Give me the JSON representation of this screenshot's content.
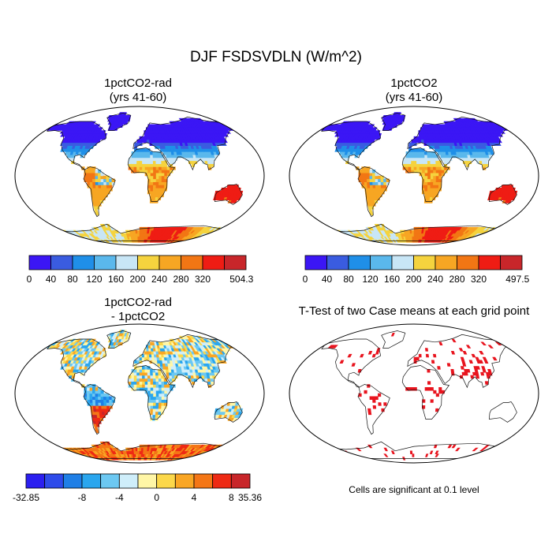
{
  "page": {
    "title": "DJF FSDSVDLN (W/m^2)"
  },
  "panels": [
    {
      "id": "p1",
      "title_line1": "1pctCO2-rad",
      "title_line2": "(yrs 41-60)"
    },
    {
      "id": "p2",
      "title_line1": "1pctCO2",
      "title_line2": "(yrs 41-60)"
    },
    {
      "id": "p3",
      "title_line1": "1pctCO2-rad",
      "title_line2": "- 1pctCO2"
    },
    {
      "id": "p4",
      "title_line1": "T-Test of two Case means at each grid point",
      "title_line2": ""
    }
  ],
  "colorbars": {
    "cb1": {
      "colors": [
        "#3b16f5",
        "#3a5ce0",
        "#1f8fe8",
        "#5ab8ec",
        "#c8e6f6",
        "#f5d33e",
        "#f7a623",
        "#f27614",
        "#ef1c14",
        "#c8262a"
      ],
      "labels": [
        "0",
        "40",
        "80",
        "120",
        "160",
        "200",
        "240",
        "280",
        "320",
        "504.3"
      ]
    },
    "cb2": {
      "colors": [
        "#3b16f5",
        "#3a5ce0",
        "#1f8fe8",
        "#5ab8ec",
        "#c8e6f6",
        "#f5d33e",
        "#f7a623",
        "#f27614",
        "#ef1c14",
        "#c8262a"
      ],
      "labels": [
        "0",
        "40",
        "80",
        "120",
        "160",
        "200",
        "240",
        "280",
        "320",
        "497.5"
      ]
    },
    "cb3": {
      "colors": [
        "#2b1ff0",
        "#2e4bea",
        "#1f7fe6",
        "#2aa6ee",
        "#6cc8f2",
        "#cfeefa",
        "#fff6a6",
        "#fcd84a",
        "#f9a624",
        "#f47616",
        "#ee2a14",
        "#c8262a"
      ],
      "labels": [
        "-32.85",
        "-8",
        "-4",
        "0",
        "4",
        "8",
        "35.36"
      ]
    }
  },
  "footer_note": "Cells are significant at 0.1 level"
}
